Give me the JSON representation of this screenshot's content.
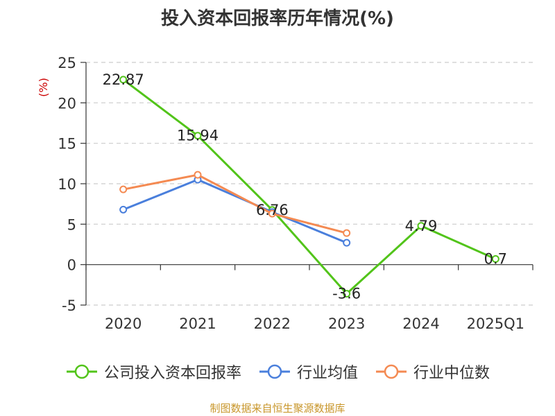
{
  "chart_data": {
    "type": "line",
    "title": "投入资本回报率历年情况(%)",
    "ylabel": "(%)",
    "xlabel": "",
    "categories": [
      "2020",
      "2021",
      "2022",
      "2023",
      "2024",
      "2025Q1"
    ],
    "ylim": [
      -5,
      25
    ],
    "yticks": [
      25,
      20,
      15,
      10,
      5,
      0,
      -5
    ],
    "grid": true,
    "legend_position": "bottom",
    "series": [
      {
        "name": "公司投入资本回报率",
        "color": "#52c41a",
        "values": [
          22.87,
          15.94,
          6.76,
          -3.6,
          4.79,
          0.7
        ],
        "data_labels": [
          "22.87",
          "15.94",
          "6.76",
          "-3.6",
          "4.79",
          "0.7"
        ]
      },
      {
        "name": "行业均值",
        "color": "#4a7fdc",
        "values": [
          6.8,
          10.5,
          6.5,
          2.7,
          null,
          null
        ]
      },
      {
        "name": "行业中位数",
        "color": "#f48a52",
        "values": [
          9.3,
          11.1,
          6.3,
          3.9,
          null,
          null
        ]
      }
    ]
  },
  "footer": {
    "source": "制图数据来自恒生聚源数据库"
  }
}
